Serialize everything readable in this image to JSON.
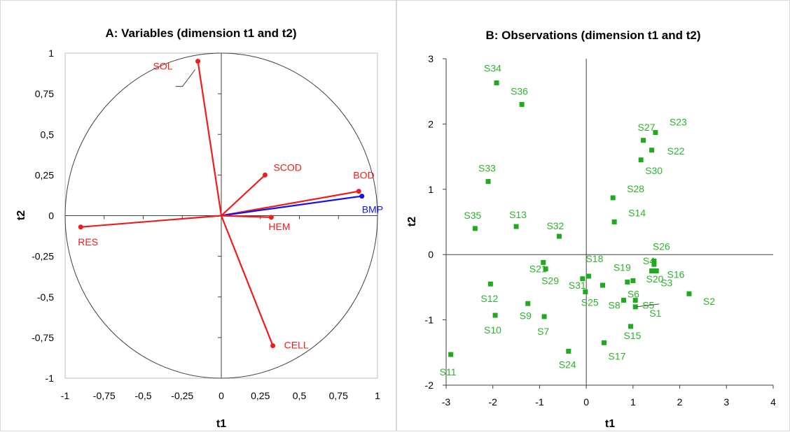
{
  "chart_data": [
    {
      "type": "scatter",
      "title": "A: Variables (dimension t1 and t2)",
      "xlabel": "t1",
      "ylabel": "t2",
      "xlim": [
        -1,
        1
      ],
      "ylim": [
        -1,
        1
      ],
      "xticks": [
        "-1",
        "-0,75",
        "-0,5",
        "-0,25",
        "0",
        "0,25",
        "0,5",
        "0,75",
        "1"
      ],
      "yticks": [
        "-1",
        "-0,75",
        "-0,5",
        "-0,25",
        "0",
        "0,25",
        "0,5",
        "0,75",
        "1"
      ],
      "unit_circle": true,
      "line_color_default": "#ee1c1c",
      "line_color_highlight": "#1212ee",
      "vectors": [
        {
          "name": "SOL",
          "x": -0.15,
          "y": 0.95,
          "color": "#ee1c1c"
        },
        {
          "name": "SCOD",
          "x": 0.28,
          "y": 0.25,
          "color": "#ee1c1c"
        },
        {
          "name": "BOD",
          "x": 0.88,
          "y": 0.15,
          "color": "#ee1c1c"
        },
        {
          "name": "BMP",
          "x": 0.9,
          "y": 0.12,
          "color": "#1212ee"
        },
        {
          "name": "HEM",
          "x": 0.32,
          "y": -0.01,
          "color": "#ee1c1c"
        },
        {
          "name": "RES",
          "x": -0.9,
          "y": -0.07,
          "color": "#ee1c1c"
        },
        {
          "name": "CELL",
          "x": 0.33,
          "y": -0.8,
          "color": "#ee1c1c"
        }
      ]
    },
    {
      "type": "scatter",
      "title": "B: Observations (dimension t1 and t2)",
      "xlabel": "t1",
      "ylabel": "t2",
      "xlim": [
        -3,
        4
      ],
      "ylim": [
        -2,
        3
      ],
      "xticks": [
        "-3",
        "-2",
        "-1",
        "0",
        "1",
        "2",
        "3",
        "4"
      ],
      "yticks": [
        "-2",
        "-1",
        "0",
        "1",
        "2",
        "3"
      ],
      "marker_color": "#1faa1f",
      "points": [
        {
          "name": "S1",
          "x": 1.05,
          "y": -0.8
        },
        {
          "name": "S2",
          "x": 2.2,
          "y": -0.6
        },
        {
          "name": "S3",
          "x": 1.5,
          "y": -0.25
        },
        {
          "name": "S4",
          "x": 1.45,
          "y": -0.15
        },
        {
          "name": "S5",
          "x": 1.05,
          "y": -0.7
        },
        {
          "name": "S6",
          "x": 1.0,
          "y": -0.4
        },
        {
          "name": "S7",
          "x": -0.9,
          "y": -0.95
        },
        {
          "name": "S8",
          "x": 0.8,
          "y": -0.7
        },
        {
          "name": "S9",
          "x": -1.25,
          "y": -0.75
        },
        {
          "name": "S10",
          "x": -1.95,
          "y": -0.93
        },
        {
          "name": "S11",
          "x": -2.9,
          "y": -1.53
        },
        {
          "name": "S12",
          "x": -2.05,
          "y": -0.45
        },
        {
          "name": "S13",
          "x": -1.5,
          "y": 0.43
        },
        {
          "name": "S14",
          "x": 0.6,
          "y": 0.5
        },
        {
          "name": "S15",
          "x": 0.95,
          "y": -1.1
        },
        {
          "name": "S16",
          "x": 1.4,
          "y": -0.25
        },
        {
          "name": "S17",
          "x": 0.38,
          "y": -1.35
        },
        {
          "name": "S18",
          "x": 0.05,
          "y": -0.33
        },
        {
          "name": "S19",
          "x": 0.88,
          "y": -0.42
        },
        {
          "name": "S20",
          "x": 0.35,
          "y": -0.47
        },
        {
          "name": "S21",
          "x": -0.92,
          "y": -0.12
        },
        {
          "name": "S22",
          "x": 1.4,
          "y": 1.6
        },
        {
          "name": "S23",
          "x": 1.48,
          "y": 1.87
        },
        {
          "name": "S24",
          "x": -0.38,
          "y": -1.48
        },
        {
          "name": "S25",
          "x": -0.02,
          "y": -0.57
        },
        {
          "name": "S26",
          "x": 1.45,
          "y": -0.1
        },
        {
          "name": "S27",
          "x": 1.22,
          "y": 1.75
        },
        {
          "name": "S28",
          "x": 0.57,
          "y": 0.87
        },
        {
          "name": "S29",
          "x": -0.87,
          "y": -0.22
        },
        {
          "name": "S30",
          "x": 1.17,
          "y": 1.45
        },
        {
          "name": "S31",
          "x": -0.08,
          "y": -0.37
        },
        {
          "name": "S32",
          "x": -0.58,
          "y": 0.28
        },
        {
          "name": "S33",
          "x": -2.1,
          "y": 1.12
        },
        {
          "name": "S34",
          "x": -1.92,
          "y": 2.63
        },
        {
          "name": "S35",
          "x": -2.38,
          "y": 0.4
        },
        {
          "name": "S36",
          "x": -1.38,
          "y": 2.3
        }
      ]
    }
  ]
}
